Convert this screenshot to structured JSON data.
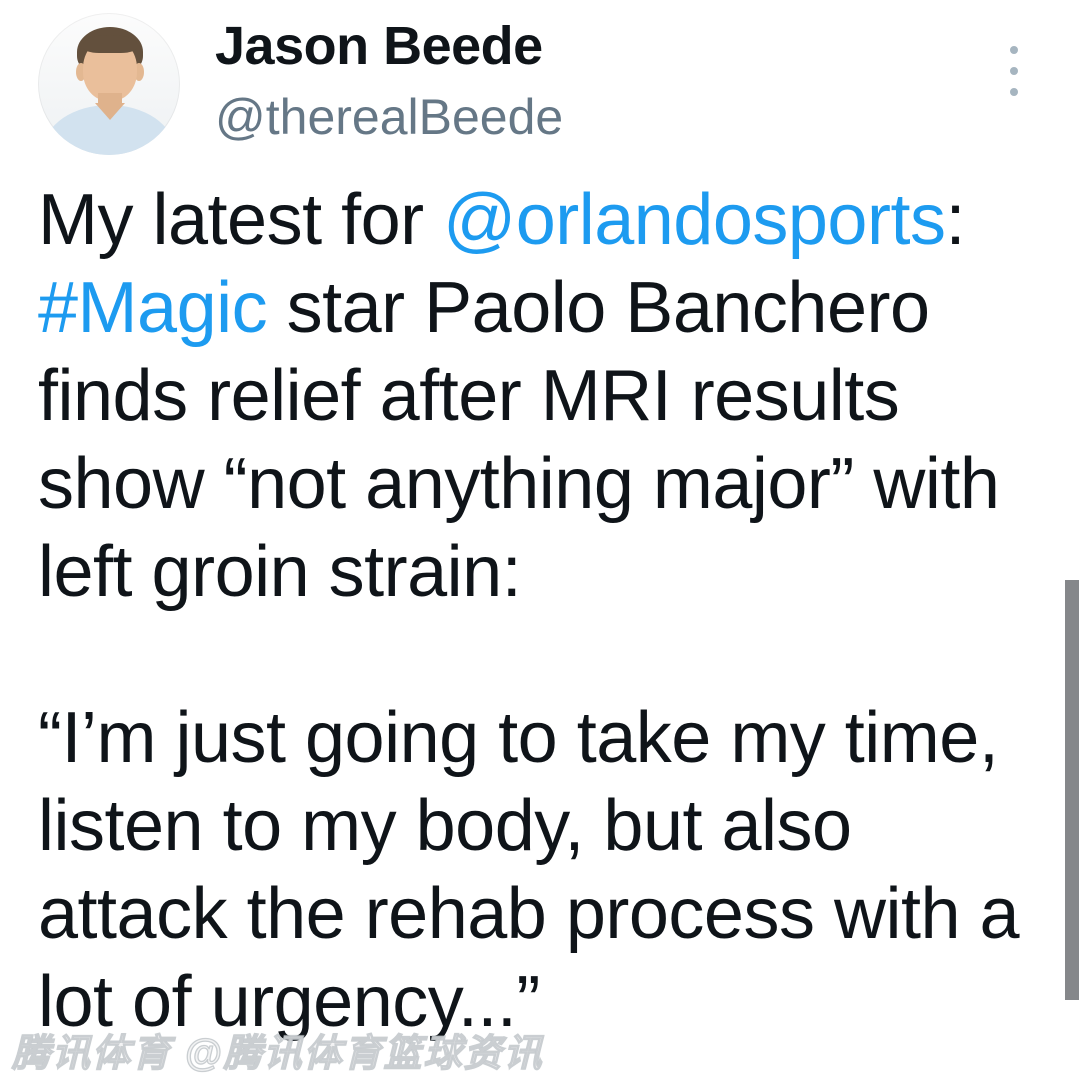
{
  "header": {
    "display_name": "Jason Beede",
    "handle": "@therealBeede"
  },
  "tweet": {
    "para1": {
      "line1_text": "My latest for ",
      "line1_mention": "@orlandosports",
      "line1_punct": ":",
      "line2_hashtag": "#Magic",
      "line2_text": " star Paolo Banchero",
      "line3": "finds relief after MRI results",
      "line4": "show “not anything major” with",
      "line5": "left groin strain:"
    },
    "para2": {
      "line1": "“I’m just going to take my time,",
      "line2": "listen to my body, but also",
      "line3": "attack the rehab process with a",
      "line4": "lot of urgency...”"
    }
  },
  "watermark": {
    "text": "腾讯体育 @腾讯体育篮球资讯"
  },
  "colors": {
    "link_blue": "#1d9bf0",
    "text_primary": "#0f1419",
    "text_secondary": "#657786",
    "more_icon_gray": "#a6b5c0",
    "scrollbar_gray": "#85878a"
  }
}
